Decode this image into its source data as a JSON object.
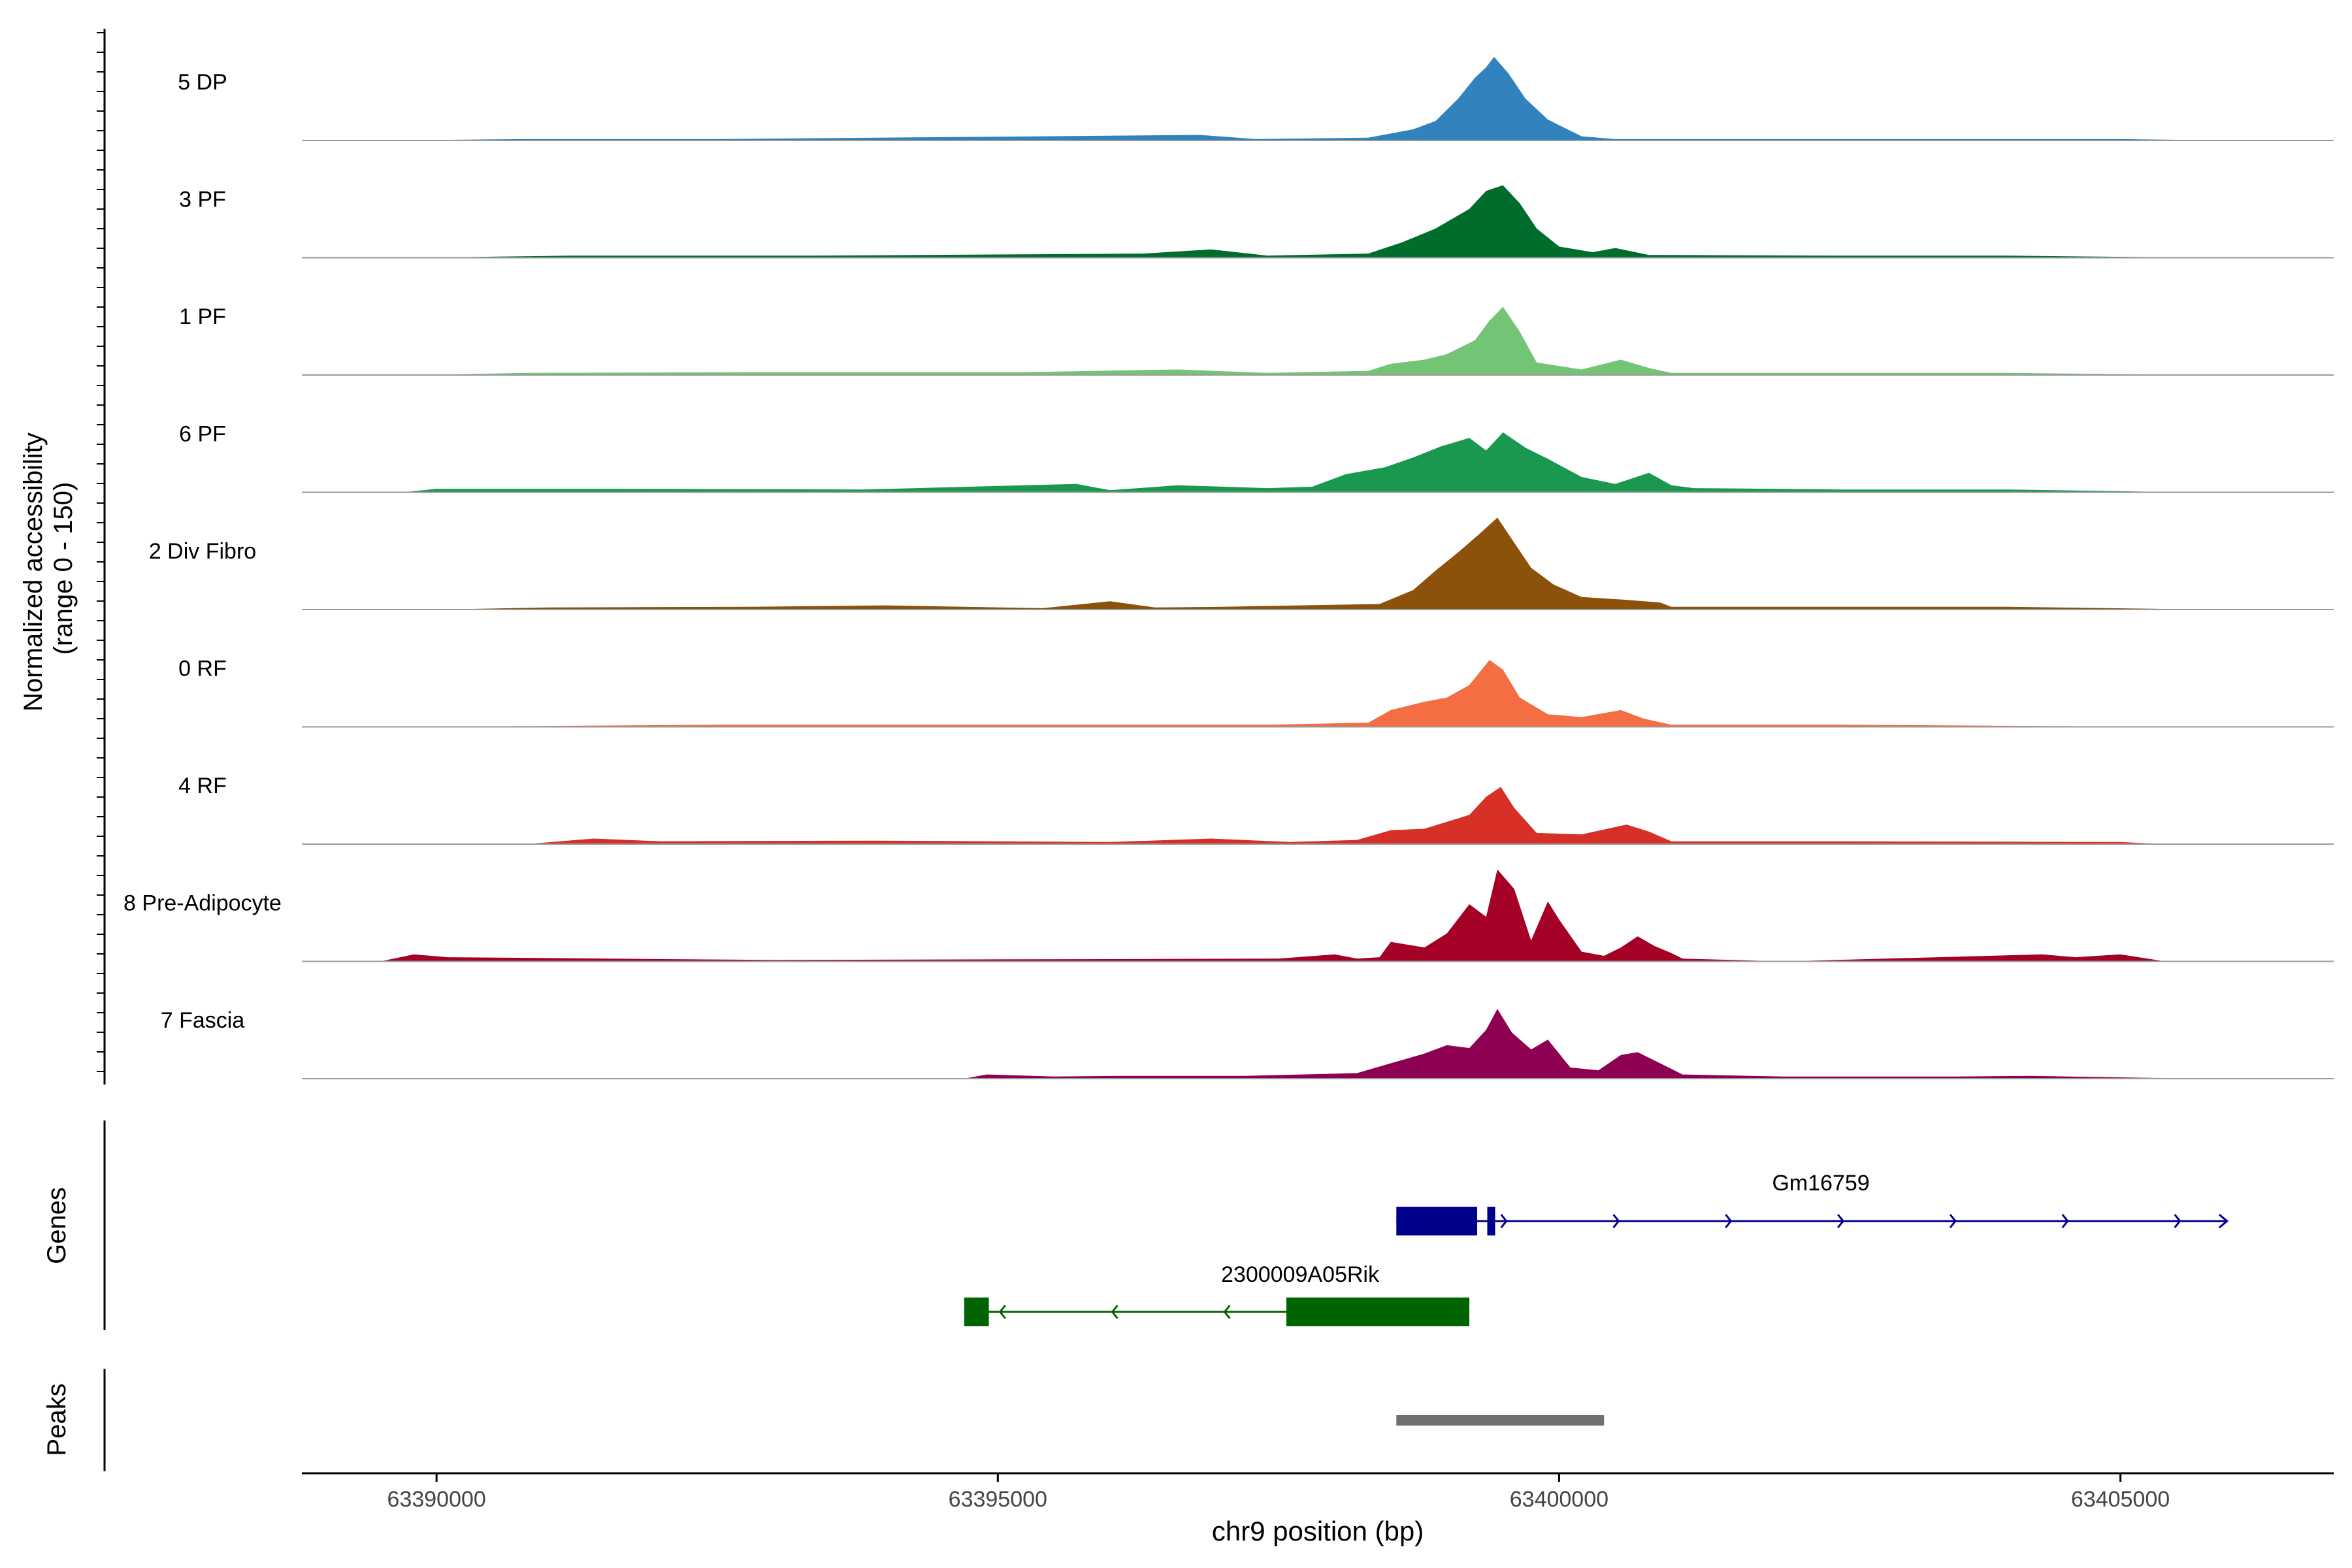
{
  "chart_data": {
    "type": "area",
    "title": "",
    "xlabel": "chr9 position (bp)",
    "ylabel_line1": "Normalized accessibility",
    "ylabel_line2": "(range 0 - 150)",
    "ylim": [
      0,
      150
    ],
    "xlim": [
      63388800,
      63406900
    ],
    "x_ticks": [
      63390000,
      63395000,
      63400000,
      63405000
    ],
    "x_tick_labels": [
      "63390000",
      "63395000",
      "63400000",
      "63405000"
    ],
    "tracks": [
      {
        "name": "5 DP",
        "color": "#3182BD",
        "profile": [
          [
            63389500,
            0
          ],
          [
            63390800,
            2
          ],
          [
            63392500,
            2
          ],
          [
            63396800,
            8
          ],
          [
            63397300,
            2
          ],
          [
            63398300,
            4
          ],
          [
            63398700,
            16
          ],
          [
            63398900,
            28
          ],
          [
            63399100,
            60
          ],
          [
            63399250,
            90
          ],
          [
            63399350,
            105
          ],
          [
            63399420,
            120
          ],
          [
            63399550,
            96
          ],
          [
            63399700,
            60
          ],
          [
            63399900,
            30
          ],
          [
            63400200,
            6
          ],
          [
            63400500,
            2
          ],
          [
            63402000,
            2
          ],
          [
            63405000,
            2
          ],
          [
            63406000,
            0
          ]
        ]
      },
      {
        "name": "3 PF",
        "color": "#006D2C",
        "profile": [
          [
            63389800,
            0
          ],
          [
            63391200,
            3
          ],
          [
            63393400,
            3
          ],
          [
            63396300,
            6
          ],
          [
            63396900,
            12
          ],
          [
            63397400,
            3
          ],
          [
            63398300,
            6
          ],
          [
            63398600,
            22
          ],
          [
            63398900,
            42
          ],
          [
            63399200,
            70
          ],
          [
            63399350,
            96
          ],
          [
            63399500,
            104
          ],
          [
            63399650,
            78
          ],
          [
            63399800,
            42
          ],
          [
            63400000,
            16
          ],
          [
            63400300,
            8
          ],
          [
            63400500,
            14
          ],
          [
            63400800,
            4
          ],
          [
            63402500,
            3
          ],
          [
            63404000,
            3
          ],
          [
            63405800,
            0
          ]
        ]
      },
      {
        "name": "1 PF",
        "color": "#74C476",
        "profile": [
          [
            63389800,
            0
          ],
          [
            63390800,
            3
          ],
          [
            63392800,
            4
          ],
          [
            63395200,
            4
          ],
          [
            63396600,
            8
          ],
          [
            63397400,
            3
          ],
          [
            63398300,
            6
          ],
          [
            63398500,
            16
          ],
          [
            63398800,
            22
          ],
          [
            63399000,
            30
          ],
          [
            63399250,
            50
          ],
          [
            63399380,
            78
          ],
          [
            63399500,
            98
          ],
          [
            63399650,
            62
          ],
          [
            63399800,
            18
          ],
          [
            63400200,
            8
          ],
          [
            63400550,
            22
          ],
          [
            63400800,
            10
          ],
          [
            63401000,
            3
          ],
          [
            63402500,
            3
          ],
          [
            63404000,
            3
          ],
          [
            63405800,
            0
          ]
        ]
      },
      {
        "name": "6 PF",
        "color": "#1A9850",
        "profile": [
          [
            63389700,
            0
          ],
          [
            63390000,
            5
          ],
          [
            63391600,
            5
          ],
          [
            63393800,
            4
          ],
          [
            63395700,
            12
          ],
          [
            63396000,
            3
          ],
          [
            63396600,
            10
          ],
          [
            63397400,
            6
          ],
          [
            63397800,
            8
          ],
          [
            63398100,
            26
          ],
          [
            63398450,
            36
          ],
          [
            63398700,
            50
          ],
          [
            63398950,
            66
          ],
          [
            63399200,
            78
          ],
          [
            63399350,
            60
          ],
          [
            63399500,
            86
          ],
          [
            63399700,
            64
          ],
          [
            63399900,
            48
          ],
          [
            63400200,
            22
          ],
          [
            63400500,
            12
          ],
          [
            63400800,
            28
          ],
          [
            63401000,
            10
          ],
          [
            63401200,
            6
          ],
          [
            63402500,
            4
          ],
          [
            63404000,
            4
          ],
          [
            63405600,
            0
          ]
        ]
      },
      {
        "name": "2 Div Fibro",
        "color": "#8C510A",
        "profile": [
          [
            63390000,
            0
          ],
          [
            63391000,
            3
          ],
          [
            63392800,
            4
          ],
          [
            63394000,
            6
          ],
          [
            63395400,
            2
          ],
          [
            63396000,
            12
          ],
          [
            63396400,
            3
          ],
          [
            63397000,
            4
          ],
          [
            63398400,
            8
          ],
          [
            63398700,
            28
          ],
          [
            63398900,
            56
          ],
          [
            63399100,
            82
          ],
          [
            63399300,
            110
          ],
          [
            63399450,
            132
          ],
          [
            63399600,
            96
          ],
          [
            63399750,
            60
          ],
          [
            63399950,
            36
          ],
          [
            63400200,
            18
          ],
          [
            63400600,
            14
          ],
          [
            63400900,
            10
          ],
          [
            63401000,
            4
          ],
          [
            63402600,
            4
          ],
          [
            63404000,
            4
          ],
          [
            63405800,
            0
          ]
        ]
      },
      {
        "name": "0 RF",
        "color": "#F46D43",
        "profile": [
          [
            63389800,
            0
          ],
          [
            63392500,
            3
          ],
          [
            63394600,
            3
          ],
          [
            63396300,
            3
          ],
          [
            63397400,
            3
          ],
          [
            63398300,
            6
          ],
          [
            63398500,
            24
          ],
          [
            63398800,
            36
          ],
          [
            63399000,
            42
          ],
          [
            63399200,
            60
          ],
          [
            63399380,
            96
          ],
          [
            63399500,
            82
          ],
          [
            63399650,
            42
          ],
          [
            63399900,
            18
          ],
          [
            63400200,
            14
          ],
          [
            63400550,
            24
          ],
          [
            63400750,
            12
          ],
          [
            63401000,
            3
          ],
          [
            63402500,
            3
          ],
          [
            63405600,
            0
          ]
        ]
      },
      {
        "name": "4 RF",
        "color": "#D73027",
        "profile": [
          [
            63390800,
            0
          ],
          [
            63391400,
            8
          ],
          [
            63392000,
            4
          ],
          [
            63393900,
            5
          ],
          [
            63396000,
            3
          ],
          [
            63396900,
            8
          ],
          [
            63397600,
            3
          ],
          [
            63398200,
            6
          ],
          [
            63398500,
            20
          ],
          [
            63398800,
            22
          ],
          [
            63399000,
            32
          ],
          [
            63399200,
            42
          ],
          [
            63399350,
            68
          ],
          [
            63399480,
            82
          ],
          [
            63399600,
            52
          ],
          [
            63399800,
            16
          ],
          [
            63400200,
            14
          ],
          [
            63400600,
            28
          ],
          [
            63400800,
            18
          ],
          [
            63401000,
            4
          ],
          [
            63402500,
            4
          ],
          [
            63405000,
            3
          ],
          [
            63405400,
            0
          ]
        ]
      },
      {
        "name": "8 Pre-Adipocyte",
        "color": "#A50026",
        "profile": [
          [
            63389500,
            0
          ],
          [
            63389800,
            10
          ],
          [
            63390100,
            6
          ],
          [
            63393000,
            2
          ],
          [
            63397500,
            4
          ],
          [
            63398000,
            10
          ],
          [
            63398200,
            4
          ],
          [
            63398400,
            6
          ],
          [
            63398500,
            28
          ],
          [
            63398800,
            20
          ],
          [
            63399000,
            40
          ],
          [
            63399200,
            82
          ],
          [
            63399350,
            64
          ],
          [
            63399450,
            132
          ],
          [
            63399600,
            104
          ],
          [
            63399750,
            30
          ],
          [
            63399900,
            86
          ],
          [
            63400000,
            60
          ],
          [
            63400200,
            14
          ],
          [
            63400400,
            8
          ],
          [
            63400550,
            20
          ],
          [
            63400700,
            36
          ],
          [
            63400850,
            22
          ],
          [
            63401000,
            12
          ],
          [
            63401100,
            4
          ],
          [
            63402000,
            0
          ],
          [
            63404300,
            10
          ],
          [
            63404600,
            6
          ],
          [
            63405000,
            10
          ],
          [
            63405400,
            0
          ]
        ]
      },
      {
        "name": "7 Fascia",
        "color": "#8E0152",
        "profile": [
          [
            63394700,
            0
          ],
          [
            63394900,
            6
          ],
          [
            63395500,
            3
          ],
          [
            63396100,
            4
          ],
          [
            63397200,
            4
          ],
          [
            63397700,
            6
          ],
          [
            63398200,
            8
          ],
          [
            63398500,
            22
          ],
          [
            63398800,
            36
          ],
          [
            63399000,
            48
          ],
          [
            63399200,
            44
          ],
          [
            63399350,
            70
          ],
          [
            63399450,
            100
          ],
          [
            63399580,
            66
          ],
          [
            63399750,
            42
          ],
          [
            63399900,
            56
          ],
          [
            63400100,
            16
          ],
          [
            63400350,
            12
          ],
          [
            63400550,
            34
          ],
          [
            63400700,
            38
          ],
          [
            63400900,
            22
          ],
          [
            63401100,
            6
          ],
          [
            63402000,
            3
          ],
          [
            63403500,
            3
          ],
          [
            63404200,
            4
          ],
          [
            63405700,
            0
          ]
        ]
      }
    ],
    "genes": [
      {
        "name": "Gm16759",
        "strand": "+",
        "color": "#00008B",
        "start": 63398550,
        "end": 63405950,
        "exons": [
          [
            63398550,
            63399270
          ],
          [
            63399360,
            63399430
          ]
        ]
      },
      {
        "name": "2300009A05Rik",
        "strand": "-",
        "color": "#006400",
        "start": 63394700,
        "end": 63399200,
        "exons": [
          [
            63394700,
            63394920
          ],
          [
            63397570,
            63399200
          ]
        ]
      }
    ],
    "peaks": [
      {
        "start": 63398550,
        "end": 63400400,
        "color": "#707070"
      }
    ]
  },
  "panel_labels": {
    "genes": "Genes",
    "peaks": "Peaks"
  }
}
